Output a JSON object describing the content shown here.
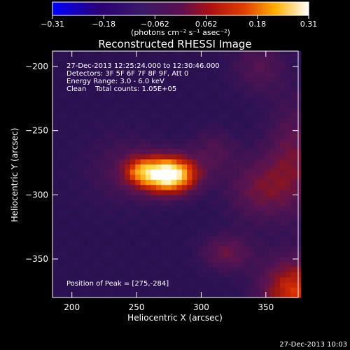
{
  "chart_data": {
    "type": "heatmap",
    "colorbar": {
      "colormap": "black-purple-red-yellow-white",
      "min": -0.31,
      "max": 0.31,
      "ticks": [
        "-0.31",
        "-0.18",
        "-0.062",
        "0.062",
        "0.18",
        "0.31"
      ],
      "unit_label": "(photons cm⁻² s⁻¹ asec⁻²)"
    },
    "title": "Reconstructed RHESSI Image",
    "xlabel": "Heliocentric X (arcsec)",
    "ylabel": "Heliocentric Y (arcsec)",
    "xlim": [
      185,
      375
    ],
    "ylim": [
      -380,
      -188
    ],
    "x_ticks": [
      200,
      250,
      300,
      350
    ],
    "y_ticks": [
      -200,
      -250,
      -300,
      -350
    ],
    "info": [
      "27-Dec-2013 12:25:24.000 to 12:30:46.000",
      "Detectors: 3F 5F 6F 7F 8F 9F, Att 0",
      "Energy Range: 3.0 - 6.0 keV",
      "Clean    Total counts: 1.05E+05"
    ],
    "peak_label": "Position of Peak = [275,-284]",
    "peak": {
      "x": 275,
      "y": -284,
      "value": 0.31
    },
    "background_value": -0.085,
    "sources": [
      {
        "x": 275,
        "y": -284,
        "sx": 15,
        "sy": 10,
        "amp": 0.42
      },
      {
        "x": 252,
        "y": -281,
        "sx": 9,
        "sy": 8,
        "amp": 0.14
      },
      {
        "x": 240,
        "y": -280,
        "sx": 22,
        "sy": 20,
        "amp": 0.06
      },
      {
        "x": 345,
        "y": -295,
        "sx": 18,
        "sy": 18,
        "amp": 0.11
      },
      {
        "x": 372,
        "y": -270,
        "sx": 15,
        "sy": 30,
        "amp": 0.11
      },
      {
        "x": 372,
        "y": -375,
        "sx": 18,
        "sy": 18,
        "amp": 0.22
      },
      {
        "x": 320,
        "y": -345,
        "sx": 14,
        "sy": 10,
        "amp": 0.11
      },
      {
        "x": 310,
        "y": -265,
        "sx": 12,
        "sy": 12,
        "amp": 0.07
      },
      {
        "x": 345,
        "y": -200,
        "sx": 15,
        "sy": 15,
        "amp": 0.08
      }
    ]
  },
  "footer": {
    "timestamp": "27-Dec-2013 10:03"
  }
}
